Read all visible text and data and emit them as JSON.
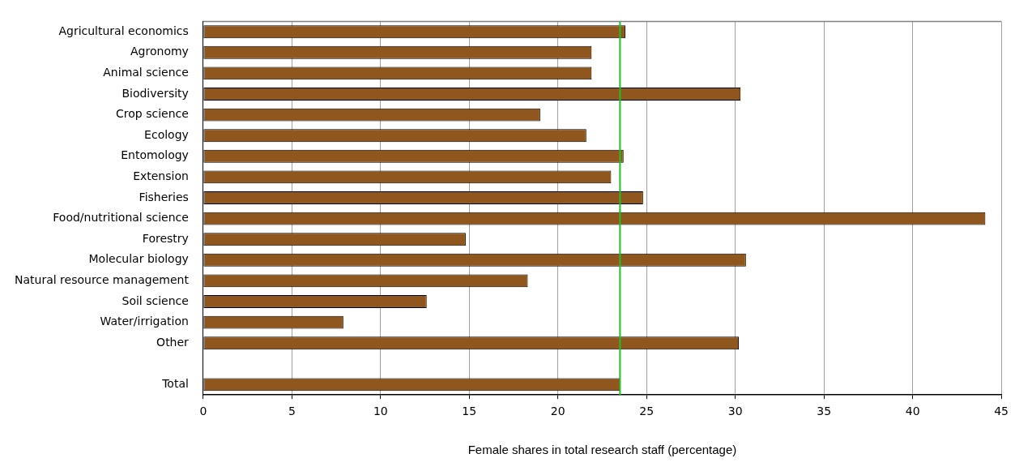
{
  "chart_data": {
    "type": "bar",
    "orientation": "horizontal",
    "xlabel": "Female shares in total research staff (percentage)",
    "categories": [
      "Agricultural economics",
      "Agronomy",
      "Animal science",
      "Biodiversity",
      "Crop science",
      "Ecology",
      "Entomology",
      "Extension",
      "Fisheries",
      "Food/nutritional science",
      "Forestry",
      "Molecular biology",
      "Natural resource management",
      "Soil science",
      "Water/irrigation",
      "Other",
      null,
      "Total"
    ],
    "values": [
      23.8,
      21.9,
      21.9,
      30.3,
      19.0,
      21.6,
      23.7,
      23.0,
      24.8,
      44.1,
      14.8,
      30.6,
      18.3,
      12.6,
      7.9,
      30.2,
      null,
      23.5
    ],
    "color": "#8f561e",
    "xlim": [
      0,
      45
    ],
    "xticks": [
      0,
      5,
      10,
      15,
      20,
      25,
      30,
      35,
      40,
      45
    ],
    "grid": "x",
    "legend": false,
    "ref_lines": [
      {
        "axis": "x",
        "value": 23.5,
        "color": "#22c022"
      }
    ]
  }
}
